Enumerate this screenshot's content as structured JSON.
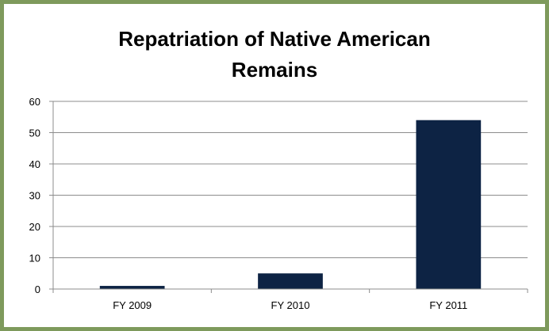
{
  "chart_data": {
    "type": "bar",
    "title": "Repatriation of Native American Remains",
    "title_lines": [
      "Repatriation of Native American",
      "Remains"
    ],
    "categories": [
      "FY 2009",
      "FY 2010",
      "FY 2011"
    ],
    "values": [
      1,
      5,
      54
    ],
    "ylim": [
      0,
      60
    ],
    "yticks": [
      "0",
      "10",
      "20",
      "30",
      "40",
      "50",
      "60"
    ],
    "grid": true,
    "legend": "none",
    "bar_color": "#0d2344",
    "frame_color": "#7e9a5c"
  }
}
